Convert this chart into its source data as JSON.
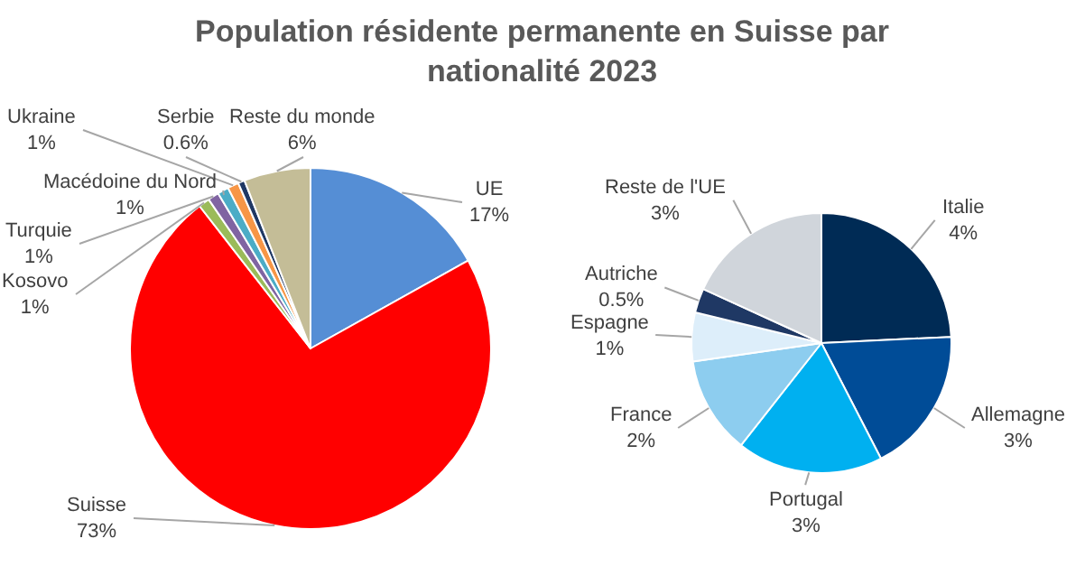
{
  "chart_data": [
    {
      "type": "pie",
      "title": "Population résidente permanente en Suisse par nationalité 2023",
      "categories": [
        "UE",
        "Suisse",
        "Kosovo",
        "Turquie",
        "Macédoine du Nord",
        "Ukraine",
        "Serbie",
        "Reste du monde"
      ],
      "values": [
        17,
        73,
        1,
        1,
        1,
        1,
        0.6,
        6
      ],
      "value_labels": [
        "17%",
        "73%",
        "1%",
        "1%",
        "1%",
        "1%",
        "0.6%",
        "6%"
      ],
      "colors": [
        "#558ed5",
        "#ff0000",
        "#9bbb59",
        "#8064a2",
        "#4bacc6",
        "#f79646",
        "#1f3864",
        "#c4bd97"
      ]
    },
    {
      "type": "pie",
      "categories": [
        "Italie",
        "Allemagne",
        "Portugal",
        "France",
        "Espagne",
        "Autriche",
        "Reste de l'UE"
      ],
      "values": [
        4,
        3,
        3,
        2,
        1,
        0.5,
        3
      ],
      "value_labels": [
        "4%",
        "3%",
        "3%",
        "2%",
        "1%",
        "0.5%",
        "3%"
      ],
      "colors": [
        "#002b55",
        "#004c97",
        "#00b0f0",
        "#8dcdef",
        "#ddeefa",
        "#1f3864",
        "#d0d5db"
      ]
    }
  ]
}
